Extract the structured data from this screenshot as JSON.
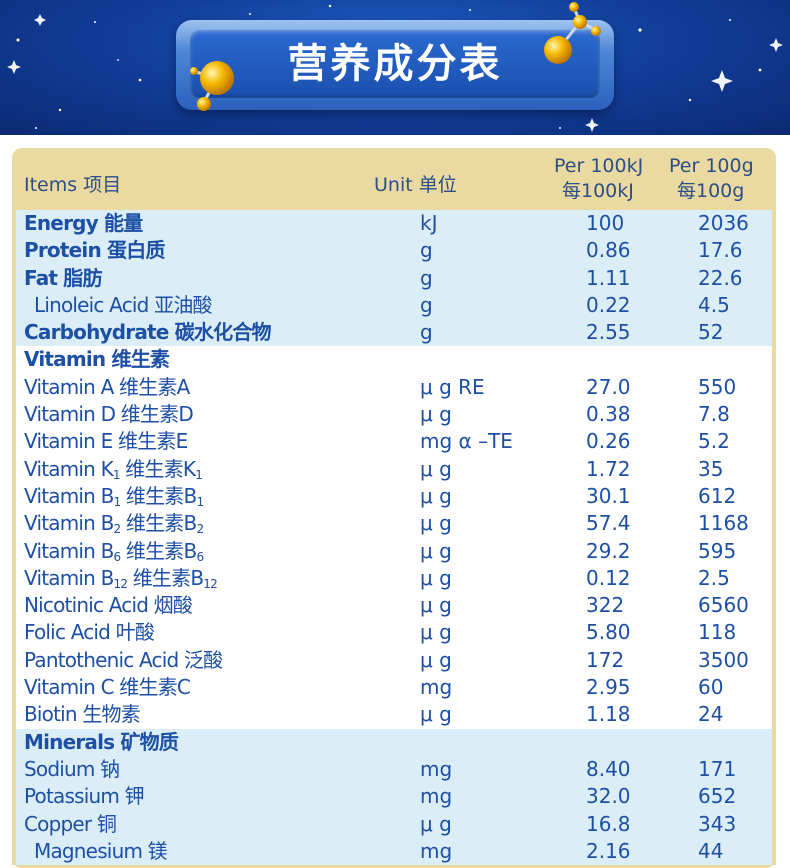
{
  "banner": {
    "title": "营养成分表"
  },
  "colors": {
    "banner_blue": "#123f9c",
    "header_gold": "#ead9a1",
    "text_blue": "#1d4fa5",
    "row_shade": "#dbeef8"
  },
  "table": {
    "headers": {
      "items": "Items 项目",
      "unit": "Unit 单位",
      "per_kj_line1": "Per 100kJ",
      "per_kj_line2": "每100kJ",
      "per_g_line1": "Per 100g",
      "per_g_line2": "每100g"
    },
    "rows": [
      {
        "name": "Energy 能量",
        "unit": "kJ",
        "v1": "100",
        "v2": "2036"
      },
      {
        "name": "Protein 蛋白质",
        "unit": "g",
        "v1": "0.86",
        "v2": "17.6"
      },
      {
        "name": "Fat 脂肪",
        "unit": "g",
        "v1": "1.11",
        "v2": "22.6"
      },
      {
        "name": "Linoleic Acid 亚油酸",
        "unit": "g",
        "v1": "0.22",
        "v2": "4.5"
      },
      {
        "name": "Carbohydrate 碳水化合物",
        "unit": "g",
        "v1": "2.55",
        "v2": "52"
      },
      {
        "name": "Vitamin 维生素",
        "unit": "",
        "v1": "",
        "v2": ""
      },
      {
        "name": "Vitamin A 维生素A",
        "unit": "μ g RE",
        "v1": "27.0",
        "v2": "550"
      },
      {
        "name": "Vitamin D 维生素D",
        "unit": "μ g",
        "v1": "0.38",
        "v2": "7.8"
      },
      {
        "name": "Vitamin E 维生素E",
        "unit": "mg α –TE",
        "v1": "0.26",
        "v2": "5.2"
      },
      {
        "name_a": "Vitamin K",
        "name_sub1": "1",
        "name_b": " 维生素K",
        "name_sub2": "1",
        "unit": "μ g",
        "v1": "1.72",
        "v2": "35"
      },
      {
        "name_a": "Vitamin B",
        "name_sub1": "1",
        "name_b": " 维生素B",
        "name_sub2": "1",
        "unit": "μ g",
        "v1": "30.1",
        "v2": "612"
      },
      {
        "name_a": "Vitamin B",
        "name_sub1": "2",
        "name_b": " 维生素B",
        "name_sub2": "2",
        "unit": "μ g",
        "v1": "57.4",
        "v2": "1168"
      },
      {
        "name_a": "Vitamin B",
        "name_sub1": "6",
        "name_b": " 维生素B",
        "name_sub2": "6",
        "unit": "μ g",
        "v1": "29.2",
        "v2": "595"
      },
      {
        "name_a": "Vitamin B",
        "name_sub1": "12",
        "name_b": " 维生素B",
        "name_sub2": "12",
        "unit": "μ g",
        "v1": "0.12",
        "v2": "2.5"
      },
      {
        "name": "Nicotinic Acid 烟酸",
        "unit": "μ g",
        "v1": "322",
        "v2": "6560"
      },
      {
        "name": "Folic Acid 叶酸",
        "unit": "μ g",
        "v1": "5.80",
        "v2": "118"
      },
      {
        "name": "Pantothenic Acid 泛酸",
        "unit": "μ g",
        "v1": "172",
        "v2": "3500"
      },
      {
        "name": "Vitamin C 维生素C",
        "unit": "mg",
        "v1": "2.95",
        "v2": "60"
      },
      {
        "name": "Biotin 生物素",
        "unit": "μ g",
        "v1": "1.18",
        "v2": "24"
      },
      {
        "name": "Minerals 矿物质",
        "unit": "",
        "v1": "",
        "v2": ""
      },
      {
        "name": "Sodium 钠",
        "unit": "mg",
        "v1": "8.40",
        "v2": "171"
      },
      {
        "name": "Potassium 钾",
        "unit": "mg",
        "v1": "32.0",
        "v2": "652"
      },
      {
        "name": "Copper 铜",
        "unit": "μ g",
        "v1": "16.8",
        "v2": "343"
      },
      {
        "name": "Magnesium 镁",
        "unit": "mg",
        "v1": "2.16",
        "v2": "44"
      }
    ]
  }
}
